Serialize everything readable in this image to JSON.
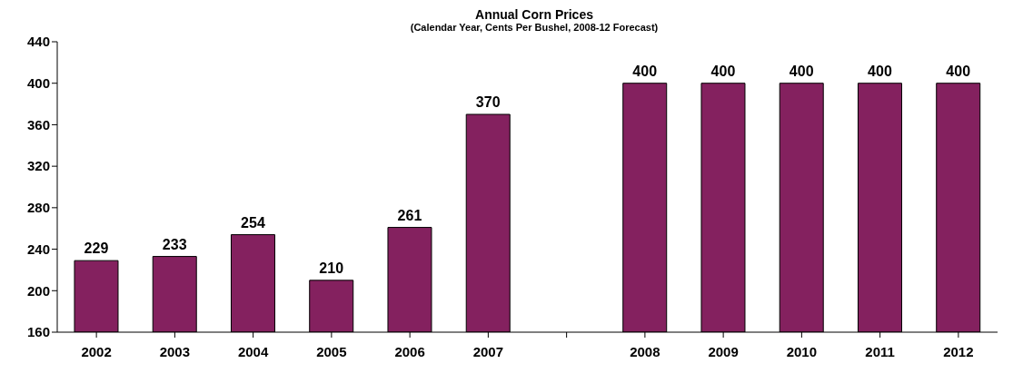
{
  "chart_data": {
    "type": "bar",
    "title": "Annual Corn Prices",
    "subtitle": "(Calendar Year, Cents Per Bushel, 2008-12 Forecast)",
    "categories": [
      "2002",
      "2003",
      "2004",
      "2005",
      "2006",
      "2007",
      null,
      "2008",
      "2009",
      "2010",
      "2011",
      "2012"
    ],
    "values": [
      229,
      233,
      254,
      210,
      261,
      370,
      null,
      400,
      400,
      400,
      400,
      400
    ],
    "color": "#84215f",
    "ylim": [
      160,
      440
    ],
    "yticks": [
      160,
      200,
      240,
      280,
      320,
      360,
      400,
      440
    ],
    "data_labels": true,
    "grid": false,
    "legend": false
  }
}
